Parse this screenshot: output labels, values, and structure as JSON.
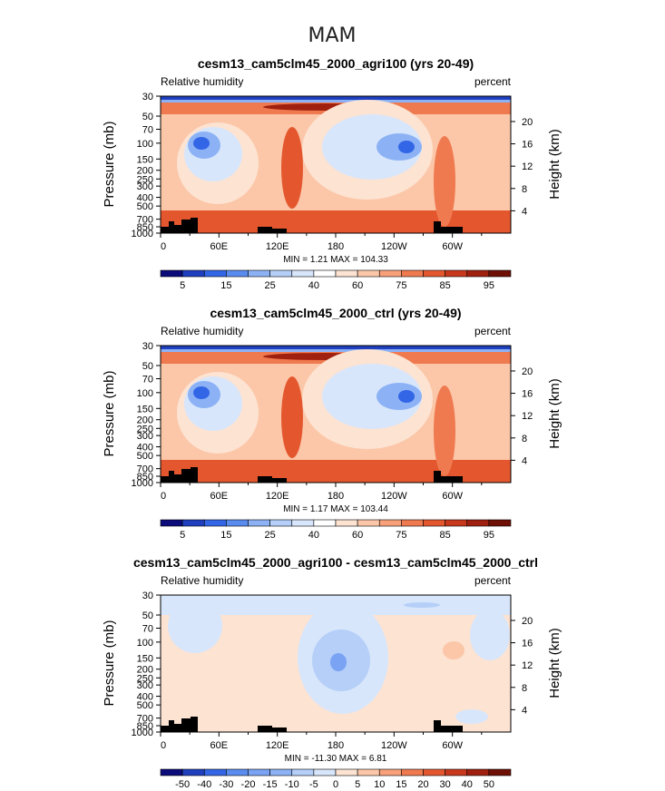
{
  "figure_title": "MAM",
  "panels": [
    {
      "title": "cesm13_cam5clm45_2000_agri100 (yrs 20-49)",
      "variable": "Relative humidity",
      "units": "percent",
      "stats": "MIN =    1.21   MAX = 104.33",
      "colorbar_labels": [
        "5",
        "15",
        "25",
        "40",
        "60",
        "75",
        "85",
        "95"
      ],
      "colors": [
        "#0b0b7a",
        "#1f3fbf",
        "#3366e6",
        "#5a8cf0",
        "#8cb2f5",
        "#b5cff8",
        "#d8e6fb",
        "#ffffff",
        "#fde3d2",
        "#fbc7a8",
        "#f7a07a",
        "#f07a50",
        "#e4572e",
        "#c8381d",
        "#a0200f",
        "#6e1006"
      ]
    },
    {
      "title": "cesm13_cam5clm45_2000_ctrl (yrs 20-49)",
      "variable": "Relative humidity",
      "units": "percent",
      "stats": "MIN =    1.17   MAX = 103.44",
      "colorbar_labels": [
        "5",
        "15",
        "25",
        "40",
        "60",
        "75",
        "85",
        "95"
      ],
      "colors": [
        "#0b0b7a",
        "#1f3fbf",
        "#3366e6",
        "#5a8cf0",
        "#8cb2f5",
        "#b5cff8",
        "#d8e6fb",
        "#ffffff",
        "#fde3d2",
        "#fbc7a8",
        "#f7a07a",
        "#f07a50",
        "#e4572e",
        "#c8381d",
        "#a0200f",
        "#6e1006"
      ]
    },
    {
      "title": "cesm13_cam5clm45_2000_agri100 - cesm13_cam5clm45_2000_ctrl",
      "variable": "Relative humidity",
      "units": "percent",
      "stats": "MIN = -11.30   MAX =    6.81",
      "colorbar_labels": [
        "-50",
        "-40",
        "-30",
        "-20",
        "-15",
        "-10",
        "-5",
        "0",
        "5",
        "10",
        "15",
        "20",
        "30",
        "40",
        "50"
      ],
      "colors": [
        "#0b0b7a",
        "#1f3fbf",
        "#3366e6",
        "#5a8cf0",
        "#7aa3f3",
        "#8cb2f5",
        "#b5cff8",
        "#d8e6fb",
        "#fde3d2",
        "#fbc7a8",
        "#f7a07a",
        "#f07a50",
        "#e4572e",
        "#c8381d",
        "#a0200f",
        "#6e1006"
      ]
    }
  ],
  "chart_data": {
    "type": "heatmap",
    "title": "MAM",
    "xlabel": "",
    "ylabel": "Pressure (mb)",
    "y2label": "Height (km)",
    "x_ticks": [
      "0",
      "60E",
      "120E",
      "180",
      "120W",
      "60W"
    ],
    "x_tick_values": [
      0,
      60,
      120,
      180,
      240,
      300
    ],
    "xlim": [
      0,
      360
    ],
    "y_ticks": [
      "30",
      "50",
      "70",
      "100",
      "150",
      "200",
      "250",
      "300",
      "400",
      "500",
      "700",
      "850",
      "1000"
    ],
    "y_tick_values": [
      30,
      50,
      70,
      100,
      150,
      200,
      250,
      300,
      400,
      500,
      700,
      850,
      1000
    ],
    "ylim": [
      1000,
      30
    ],
    "y2_ticks": [
      "20",
      "16",
      "12",
      "8",
      "4"
    ],
    "y2_tick_values": [
      20,
      16,
      12,
      8,
      4
    ],
    "scale_height_km": 7,
    "series": [
      {
        "name": "agri100 RH (%)",
        "min": 1.21,
        "max": 104.33
      },
      {
        "name": "ctrl RH (%)",
        "min": 1.17,
        "max": 103.44
      },
      {
        "name": "agri100 - ctrl RH (%)",
        "min": -11.3,
        "max": 6.81
      }
    ]
  }
}
